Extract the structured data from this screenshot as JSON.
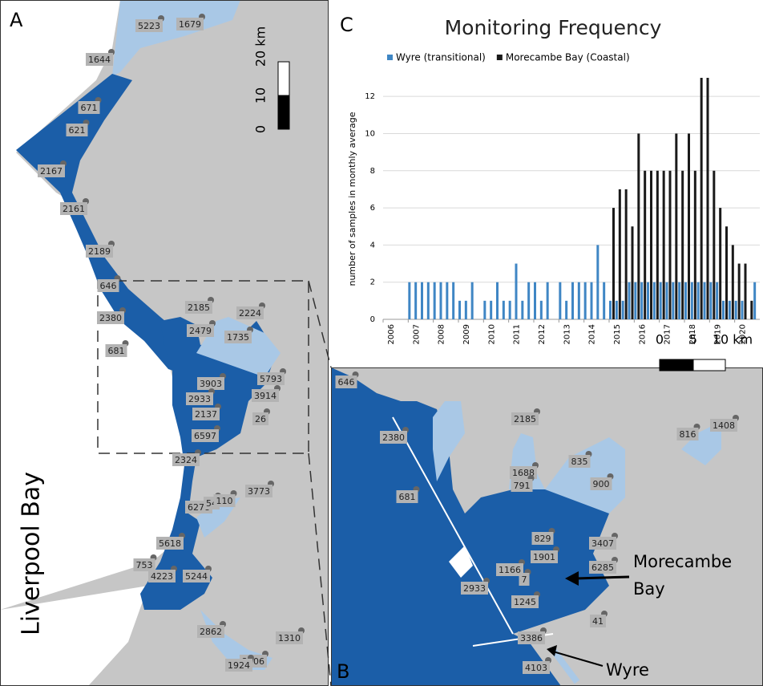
{
  "panel_a": {
    "label": "A",
    "place": "Liverpool Bay",
    "scale": [
      "0",
      "10",
      "20 km"
    ],
    "site_labels": [
      5223,
      1679,
      1644,
      671,
      621,
      2167,
      2161,
      2189,
      646,
      2380,
      2185,
      2224,
      2479,
      1735,
      681,
      3903,
      5793,
      2933,
      3914,
      2137,
      26,
      6597,
      2324,
      3773,
      6278,
      54,
      110,
      5618,
      753,
      4223,
      5244,
      2862,
      1310,
      2006,
      1924
    ]
  },
  "panel_b": {
    "label": "B",
    "places": [
      [
        "Morecambe",
        "Bay"
      ],
      [
        "Wyre"
      ]
    ],
    "scale": [
      "0",
      "5",
      "10 km"
    ],
    "site_labels": [
      646,
      2380,
      2185,
      816,
      1408,
      1688,
      835,
      791,
      900,
      681,
      829,
      3407,
      1901,
      6285,
      1166,
      7,
      2933,
      1245,
      41,
      3386,
      4103
    ]
  },
  "chart_data": {
    "type": "bar",
    "panel_label": "C",
    "title": "Monitoring Frequency",
    "y_label": "number of samples in monthly average",
    "x": [
      2007,
      2007.25,
      2007.5,
      2007.75,
      2008,
      2008.25,
      2008.5,
      2008.75,
      2009,
      2009.25,
      2009.5,
      2009.75,
      2010,
      2010.25,
      2010.5,
      2010.75,
      2011,
      2011.25,
      2011.5,
      2011.75,
      2012,
      2012.25,
      2012.5,
      2012.75,
      2013,
      2013.25,
      2013.5,
      2013.75,
      2014,
      2014.25,
      2014.5,
      2014.75,
      2015,
      2015.25,
      2015.5,
      2015.75,
      2016,
      2016.25,
      2016.5,
      2016.75,
      2017,
      2017.25,
      2017.5,
      2017.75,
      2018,
      2018.25,
      2018.5,
      2018.75,
      2019,
      2019.25,
      2019.5,
      2019.75,
      2020,
      2020.25,
      2020.5,
      2020.75
    ],
    "series": [
      {
        "name": "Wyre (transitional)",
        "color": "#3f86c4",
        "values": [
          2,
          2,
          2,
          2,
          2,
          2,
          2,
          2,
          1,
          1,
          2,
          0,
          1,
          1,
          2,
          1,
          1,
          3,
          1,
          2,
          2,
          1,
          2,
          0,
          2,
          1,
          2,
          2,
          2,
          2,
          4,
          2,
          1,
          1,
          1,
          2,
          2,
          2,
          2,
          2,
          2,
          2,
          2,
          2,
          2,
          2,
          2,
          2,
          2,
          2,
          1,
          1,
          1,
          1,
          0,
          2
        ]
      },
      {
        "name": "Morecambe Bay (Coastal)",
        "color": "#1a1a1a",
        "values": [
          null,
          null,
          null,
          null,
          null,
          null,
          null,
          null,
          null,
          null,
          null,
          null,
          null,
          null,
          null,
          null,
          null,
          null,
          null,
          null,
          null,
          null,
          null,
          null,
          null,
          null,
          null,
          null,
          null,
          null,
          null,
          null,
          6,
          7,
          7,
          5,
          10,
          8,
          8,
          8,
          8,
          8,
          10,
          8,
          10,
          8,
          13,
          13,
          8,
          6,
          5,
          4,
          3,
          3,
          1,
          null
        ]
      }
    ],
    "xlim": [
      2006,
      2021
    ],
    "xticks": [
      2006,
      2007,
      2008,
      2009,
      2010,
      2011,
      2012,
      2013,
      2014,
      2015,
      2016,
      2017,
      2018,
      2019,
      2020
    ],
    "ylim": [
      0,
      13
    ],
    "yticks": [
      0,
      2,
      4,
      6,
      8,
      10,
      12
    ],
    "grid": true
  }
}
